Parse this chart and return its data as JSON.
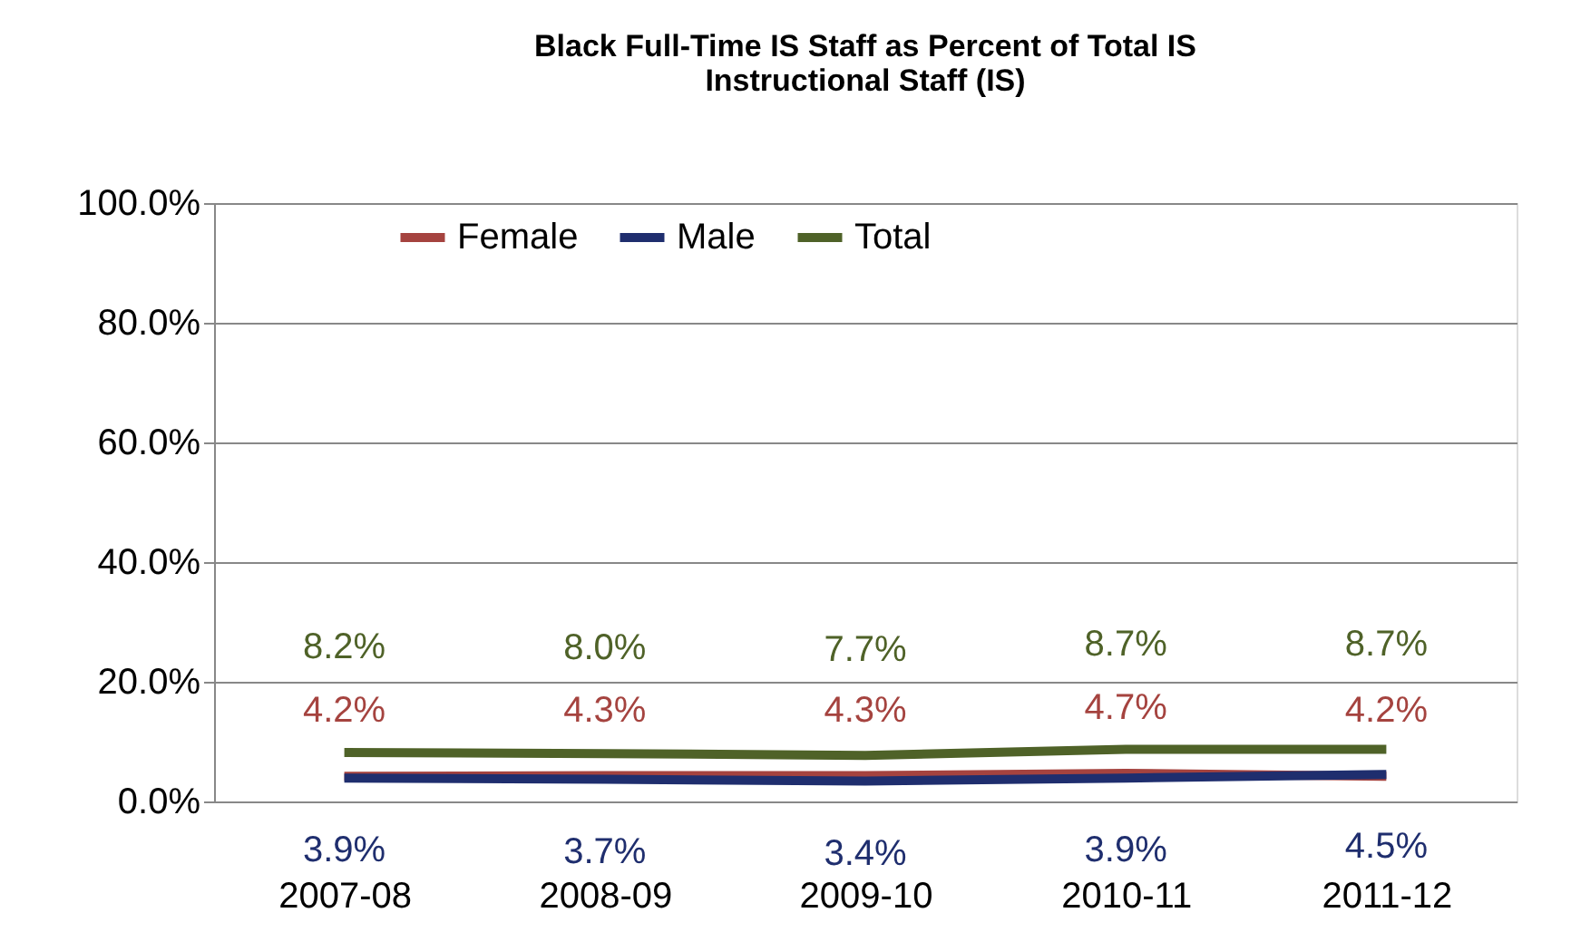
{
  "chart_data": {
    "type": "line",
    "title": [
      "Black Full-Time IS Staff as Percent of Total IS",
      "Instructional Staff (IS)"
    ],
    "categories": [
      "2007-08",
      "2008-09",
      "2009-10",
      "2010-11",
      "2011-12"
    ],
    "series": [
      {
        "name": "Female",
        "color": "#a5433f",
        "values": [
          4.2,
          4.3,
          4.3,
          4.7,
          4.2
        ],
        "value_labels": [
          "4.2%",
          "4.3%",
          "4.3%",
          "4.7%",
          "4.2%"
        ]
      },
      {
        "name": "Male",
        "color": "#1f2e6e",
        "values": [
          3.9,
          3.7,
          3.4,
          3.9,
          4.5
        ],
        "value_labels": [
          "3.9%",
          "3.7%",
          "3.4%",
          "3.9%",
          "4.5%"
        ]
      },
      {
        "name": "Total",
        "color": "#4f6228",
        "values": [
          8.2,
          8.0,
          7.7,
          8.7,
          8.7
        ],
        "value_labels": [
          "8.2%",
          "8.0%",
          "7.7%",
          "8.7%",
          "8.7%"
        ]
      }
    ],
    "ylim": [
      0,
      100
    ],
    "yticks": [
      {
        "value": 0,
        "label": "0.0%"
      },
      {
        "value": 20,
        "label": "20.0%"
      },
      {
        "value": 40,
        "label": "40.0%"
      },
      {
        "value": 60,
        "label": "60.0%"
      },
      {
        "value": 80,
        "label": "80.0%"
      },
      {
        "value": 100,
        "label": "100.0%"
      }
    ],
    "grid": "y",
    "legend": "top",
    "marker": "none",
    "line_style": "solid"
  }
}
